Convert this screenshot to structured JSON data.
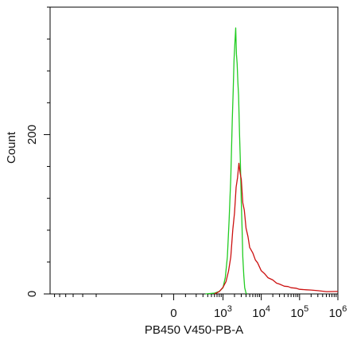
{
  "chart_data": {
    "type": "line",
    "xlabel": "PB450 V450-PB-A",
    "ylabel": "Count",
    "x_scale": "biexponential",
    "x_ticks": [
      {
        "value": 0,
        "base": "0",
        "exp": ""
      },
      {
        "value": 1000,
        "base": "10",
        "exp": "3"
      },
      {
        "value": 10000,
        "base": "10",
        "exp": "4"
      },
      {
        "value": 100000,
        "base": "10",
        "exp": "5"
      },
      {
        "value": 1000000,
        "base": "10",
        "exp": "6"
      }
    ],
    "y_ticks": [
      {
        "value": 0,
        "label": "0"
      },
      {
        "value": 200,
        "label": "200"
      }
    ],
    "ylim": [
      0,
      360
    ],
    "series": [
      {
        "color": "#22cc22",
        "points": [
          [
            350,
            0
          ],
          [
            600,
            1
          ],
          [
            800,
            3
          ],
          [
            1000,
            8
          ],
          [
            1150,
            20
          ],
          [
            1300,
            48
          ],
          [
            1450,
            90
          ],
          [
            1600,
            150
          ],
          [
            1750,
            215
          ],
          [
            1850,
            258
          ],
          [
            1950,
            290
          ],
          [
            2050,
            320
          ],
          [
            2150,
            330
          ],
          [
            2250,
            305
          ],
          [
            2350,
            285
          ],
          [
            2450,
            270
          ],
          [
            2550,
            245
          ],
          [
            2700,
            205
          ],
          [
            2850,
            160
          ],
          [
            3000,
            120
          ],
          [
            3150,
            80
          ],
          [
            3300,
            48
          ],
          [
            3500,
            22
          ],
          [
            3700,
            8
          ],
          [
            4000,
            1
          ],
          [
            4200,
            0
          ]
        ]
      },
      {
        "color": "#cc1111",
        "points": [
          [
            600,
            0
          ],
          [
            800,
            3
          ],
          [
            1000,
            8
          ],
          [
            1200,
            16
          ],
          [
            1400,
            28
          ],
          [
            1600,
            48
          ],
          [
            1800,
            78
          ],
          [
            2000,
            105
          ],
          [
            2200,
            130
          ],
          [
            2400,
            150
          ],
          [
            2600,
            160
          ],
          [
            2800,
            156
          ],
          [
            3000,
            140
          ],
          [
            3300,
            118
          ],
          [
            3600,
            102
          ],
          [
            4000,
            85
          ],
          [
            4500,
            70
          ],
          [
            5000,
            60
          ],
          [
            6000,
            50
          ],
          [
            7000,
            44
          ],
          [
            8000,
            38
          ],
          [
            10000,
            30
          ],
          [
            12000,
            25
          ],
          [
            15000,
            21
          ],
          [
            20000,
            17
          ],
          [
            25000,
            14
          ],
          [
            30000,
            12
          ],
          [
            40000,
            10
          ],
          [
            50000,
            9
          ],
          [
            60000,
            8
          ],
          [
            80000,
            7
          ],
          [
            100000,
            6
          ],
          [
            150000,
            5
          ],
          [
            200000,
            5
          ],
          [
            300000,
            4
          ],
          [
            500000,
            3
          ],
          [
            1000000,
            3
          ]
        ]
      }
    ]
  }
}
